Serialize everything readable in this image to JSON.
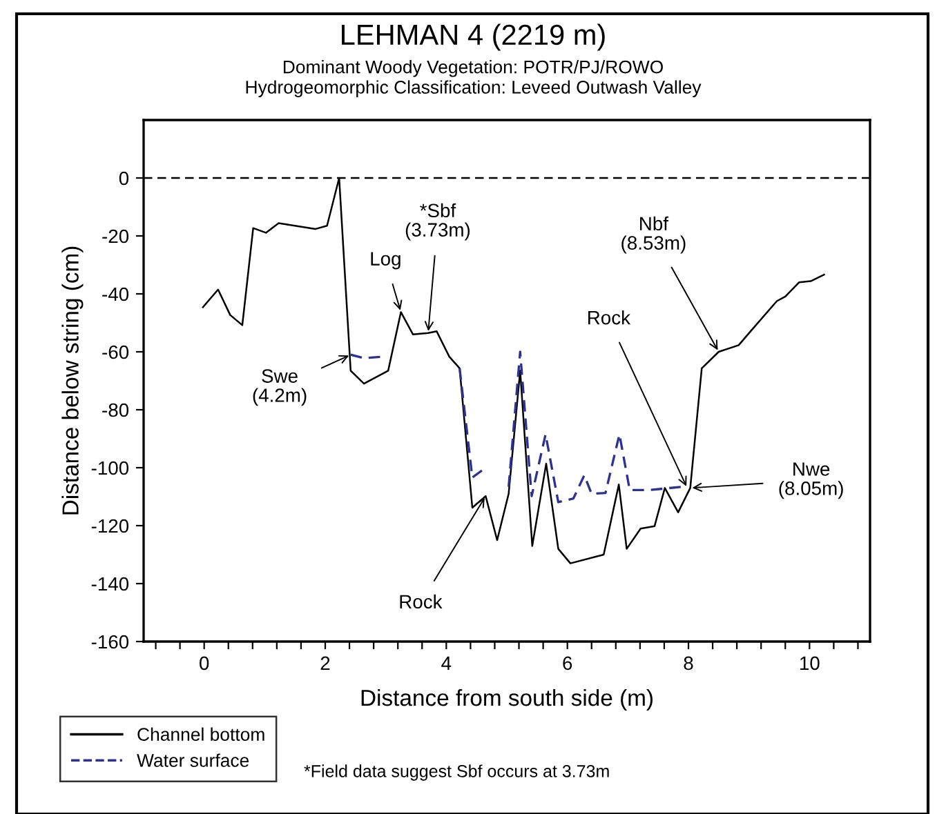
{
  "chart_data": {
    "type": "line",
    "title": "LEHMAN 4 (2219 m)",
    "subtitle": "Dominant Woody Vegetation: POTR/PJ/ROWO\nHydrogeomorphic Classification: Leveed Outwash Valley",
    "xlabel": "Distance from south side (m)",
    "ylabel": "Distance below string (cm)",
    "xlim": [
      -1,
      11
    ],
    "ylim": [
      -160,
      20
    ],
    "xticks": [
      {
        "value": -0.8,
        "label": null
      },
      {
        "value": -0.4,
        "label": null
      },
      0,
      {
        "value": 0.4,
        "label": null
      },
      {
        "value": 0.8,
        "label": null
      },
      {
        "value": 1.2,
        "label": null
      },
      {
        "value": 1.6,
        "label": null
      },
      2,
      {
        "value": 2.4,
        "label": null
      },
      {
        "value": 2.8,
        "label": null
      },
      {
        "value": 3.2,
        "label": null
      },
      {
        "value": 3.6,
        "label": null
      },
      4,
      {
        "value": 4.4,
        "label": null
      },
      {
        "value": 4.8,
        "label": null
      },
      {
        "value": 5.2,
        "label": null
      },
      {
        "value": 5.6,
        "label": null
      },
      6,
      {
        "value": 6.4,
        "label": null
      },
      {
        "value": 6.8,
        "label": null
      },
      {
        "value": 7.2,
        "label": null
      },
      {
        "value": 7.6,
        "label": null
      },
      8,
      {
        "value": 8.4,
        "label": null
      },
      {
        "value": 8.8,
        "label": null
      },
      {
        "value": 9.2,
        "label": null
      },
      {
        "value": 9.6,
        "label": null
      },
      10,
      {
        "value": 10.4,
        "label": null
      },
      {
        "value": 10.8,
        "label": null
      }
    ],
    "yticks": [
      -160,
      -140,
      -120,
      -100,
      -80,
      -60,
      -40,
      -20,
      0
    ],
    "grid": false,
    "legend": "bottom left",
    "marker": "none",
    "ref_lines": [
      {
        "axis": "y",
        "value": 0,
        "color": "#000000",
        "line_style": "dashed"
      }
    ],
    "series": [
      {
        "name": "Channel bottom",
        "color": "#000000",
        "line_style": "solid",
        "x": [
          -0.02,
          0.23,
          0.43,
          0.63,
          0.81,
          1.02,
          1.23,
          1.84,
          2.03,
          2.23,
          2.42,
          2.64,
          3.04,
          3.25,
          3.45,
          3.7,
          3.84,
          4.05,
          4.22,
          4.43,
          4.65,
          4.84,
          5.03,
          5.22,
          5.42,
          5.65,
          5.85,
          6.05,
          6.6,
          6.85,
          6.98,
          7.21,
          7.44,
          7.61,
          7.83,
          8.03,
          8.22,
          8.5,
          8.83,
          9.04,
          9.46,
          9.6,
          9.83,
          10.02,
          10.24
        ],
        "values": [
          -44.6,
          -38.5,
          -47.3,
          -50.8,
          -17.3,
          -18.9,
          -15.6,
          -17.6,
          -16.5,
          0,
          -66.5,
          -71,
          -66.5,
          -46.3,
          -54,
          -53.5,
          -52.9,
          -61.7,
          -65.7,
          -113.8,
          -109.8,
          -125,
          -109,
          -66.5,
          -127,
          -98.6,
          -128,
          -133,
          -130,
          -105.8,
          -128,
          -121,
          -120.2,
          -107,
          -115.4,
          -107,
          -65.7,
          -60,
          -57.7,
          -52.6,
          -42.5,
          -40.9,
          -36,
          -35.6,
          -33.4
        ]
      },
      {
        "name": "Water surface",
        "color": "#2e3192",
        "line_style": "dashed",
        "x": [
          2.42,
          2.64,
          2.94,
          3.5,
          4.22,
          4.43,
          4.65,
          4.9,
          5.03,
          5.22,
          5.41,
          5.64,
          5.85,
          6.1,
          6.28,
          6.4,
          6.63,
          6.86,
          7.03,
          7.36,
          7.88
        ],
        "values": [
          -61,
          -62.2,
          -61.7,
          null,
          -65.7,
          -103.4,
          -100,
          null,
          -106.6,
          -60,
          -109.8,
          -88.5,
          -111.9,
          -110.6,
          -102.6,
          -109,
          -108.7,
          -88.5,
          -107.7,
          -107.7,
          -106.6
        ]
      }
    ],
    "annotations": [
      {
        "text": "Swe\n(4.2m)",
        "x": 2.42,
        "y": -61
      },
      {
        "text": "Log",
        "x": 3.25,
        "y": -46.3
      },
      {
        "text": "*Sbf\n(3.73m)",
        "x": 3.7,
        "y": -53.5
      },
      {
        "text": "Rock",
        "x": 4.65,
        "y": -109.8
      },
      {
        "text": "Nbf\n(8.53m)",
        "x": 8.5,
        "y": -60
      },
      {
        "text": "Rock",
        "x": 7.98,
        "y": -107
      },
      {
        "text": "Nwe\n(8.05m)",
        "x": 8.03,
        "y": -107
      },
      "*Field data suggest Sbf occurs at 3.73m"
    ]
  }
}
